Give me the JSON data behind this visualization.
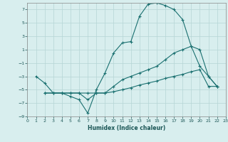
{
  "xlabel": "Humidex (Indice chaleur)",
  "bg_color": "#d8eeee",
  "line_color": "#1a7070",
  "grid_color": "#b5d5d5",
  "xlim": [
    0,
    23
  ],
  "ylim": [
    -9,
    8
  ],
  "xticks": [
    0,
    1,
    2,
    3,
    4,
    5,
    6,
    7,
    8,
    9,
    10,
    11,
    12,
    13,
    14,
    15,
    16,
    17,
    18,
    19,
    20,
    21,
    22,
    23
  ],
  "yticks": [
    -9,
    -7,
    -5,
    -3,
    -1,
    1,
    3,
    5,
    7
  ],
  "series": [
    {
      "x": [
        1,
        2,
        3,
        4,
        5,
        6,
        7,
        8,
        9,
        10,
        11,
        12,
        13,
        14,
        15,
        16,
        17,
        18,
        19,
        20,
        21,
        22
      ],
      "y": [
        -3,
        -4,
        -5.5,
        -5.5,
        -6,
        -6.5,
        -8.5,
        -5,
        -2.5,
        0.5,
        2,
        2.2,
        6,
        7.8,
        8,
        7.6,
        7,
        5.5,
        1.5,
        -1.5,
        -3,
        -4.5
      ]
    },
    {
      "x": [
        2,
        3,
        4,
        5,
        6,
        7,
        8,
        9,
        10,
        11,
        12,
        13,
        14,
        15,
        16,
        17,
        18,
        19,
        20,
        21,
        22
      ],
      "y": [
        -5.5,
        -5.5,
        -5.5,
        -5.5,
        -5.5,
        -6.5,
        -5.5,
        -5.5,
        -4.5,
        -3.5,
        -3,
        -2.5,
        -2,
        -1.5,
        -0.5,
        0.5,
        1,
        1.5,
        1,
        -3,
        -4.5
      ]
    },
    {
      "x": [
        2,
        3,
        4,
        5,
        6,
        7,
        8,
        9,
        10,
        11,
        12,
        13,
        14,
        15,
        16,
        17,
        18,
        19,
        20,
        21,
        22
      ],
      "y": [
        -5.5,
        -5.5,
        -5.5,
        -5.5,
        -5.5,
        -5.5,
        -5.5,
        -5.5,
        -5.3,
        -5,
        -4.7,
        -4.3,
        -4,
        -3.7,
        -3.3,
        -3,
        -2.7,
        -2.3,
        -2,
        -4.5,
        -4.5
      ]
    }
  ]
}
